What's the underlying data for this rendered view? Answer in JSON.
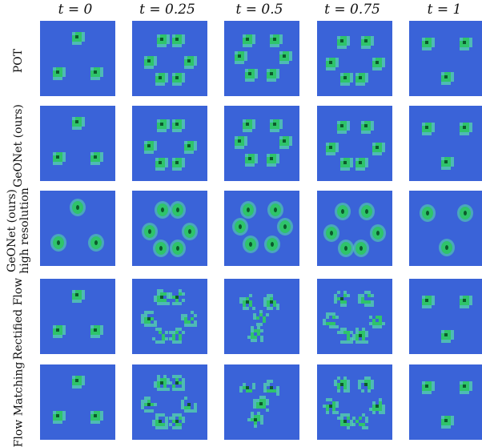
{
  "columns": [
    "t = 0",
    "t = 0.25",
    "t = 0.5",
    "t = 0.75",
    "t = 1"
  ],
  "rows": [
    {
      "label": "POT"
    },
    {
      "label": "GeONet (ours)"
    },
    {
      "label_line1": "GeONet (ours)",
      "label_line2": "high resolution"
    },
    {
      "label": "Rectified Flow"
    },
    {
      "label": "Flow Matching"
    }
  ],
  "colors": {
    "background_field": "#3a63d8",
    "blob_core": "#2fc46a",
    "blob_glow": "#57e0a8",
    "blob_center": "#0c5a2c"
  }
}
